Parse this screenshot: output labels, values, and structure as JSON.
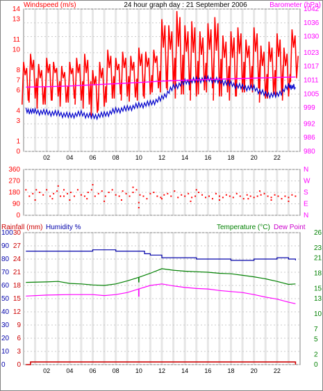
{
  "header": {
    "left_label": "Windspeed (m/s)",
    "title": "24 hour graph day : 21 September 2006",
    "right_label": "Barometer (hPa)"
  },
  "colors": {
    "frame": "#808080",
    "grid": "#c8c8c8",
    "hour_band": "#e6e6e6",
    "red": "#ff0000",
    "blue": "#0000cc",
    "magenta": "#ff00ff",
    "green": "#008000",
    "rainfall": "#cc0000",
    "humidity": "#0000aa",
    "dew_label": "#cc00cc",
    "axis_text": "#000000"
  },
  "x_ticks": [
    "02",
    "04",
    "06",
    "08",
    "10",
    "12",
    "14",
    "16",
    "18",
    "20",
    "22"
  ],
  "chart_data": [
    {
      "type": "line",
      "title": "24 hour graph day : 21 September 2006",
      "ylabel": "Windspeed (m/s)",
      "y2label": "Barometer (hPa)",
      "xlim": [
        0,
        24
      ],
      "ylim": [
        0,
        14
      ],
      "y_ticks": [
        0,
        1,
        3,
        4,
        6,
        7,
        8,
        10,
        11,
        13,
        14
      ],
      "y2lim": [
        980,
        1042
      ],
      "y2_ticks": [
        980,
        986,
        992,
        999,
        1005,
        1011,
        1017,
        1023,
        1030,
        1036,
        1042
      ],
      "grid": true,
      "series": [
        {
          "name": "Windspeed (m/s)",
          "axis": "left",
          "color": "#ff0000",
          "x": [
            0.2,
            0.8,
            1.5,
            2.2,
            2.8,
            3.5,
            4.2,
            4.8,
            5.5,
            6.2,
            6.8,
            7.5,
            8.2,
            8.8,
            9.5,
            10.2,
            10.8,
            11.5,
            12.2,
            12.8,
            13.5,
            14.2,
            14.8,
            15.5,
            16.2,
            16.8,
            17.5,
            18.2,
            18.8,
            19.5,
            20.2,
            20.8,
            21.5,
            22.2,
            22.8,
            23.5
          ],
          "low": [
            4.6,
            4.8,
            4.2,
            4.6,
            5.0,
            4.4,
            4.8,
            4.6,
            4.2,
            3.4,
            4.0,
            4.8,
            5.2,
            5.0,
            4.9,
            5.0,
            5.2,
            5.8,
            5.8,
            6.0,
            5.2,
            5.6,
            5.0,
            5.6,
            5.8,
            5.0,
            5.4,
            5.0,
            5.4,
            5.8,
            5.8,
            4.8,
            5.2,
            5.4,
            5.0,
            6.8
          ],
          "high": [
            8.8,
            9.6,
            8.6,
            9.2,
            8.8,
            8.4,
            8.8,
            9.2,
            9.6,
            8.0,
            8.8,
            10.0,
            9.2,
            9.8,
            9.4,
            10.2,
            9.8,
            10.0,
            13.0,
            12.4,
            13.8,
            12.4,
            12.8,
            11.8,
            12.6,
            13.2,
            11.4,
            11.8,
            12.2,
            11.0,
            12.2,
            10.4,
            10.8,
            11.6,
            10.2,
            12.0
          ]
        },
        {
          "name": "Windspeed average",
          "axis": "left",
          "color": "#0000cc",
          "x": [
            0.2,
            1,
            2,
            3,
            4,
            5,
            6,
            7,
            8,
            9,
            10,
            11,
            12,
            13,
            14,
            15,
            16,
            17,
            18,
            19,
            20,
            21,
            22,
            23,
            23.6
          ],
          "y": [
            4.0,
            3.9,
            3.8,
            3.7,
            3.5,
            3.7,
            3.4,
            3.6,
            4.0,
            4.2,
            4.5,
            4.7,
            5.2,
            6.3,
            6.8,
            7.0,
            7.1,
            6.9,
            6.6,
            6.3,
            6.2,
            5.6,
            5.5,
            6.4,
            6.3
          ]
        },
        {
          "name": "Barometer (hPa)",
          "axis": "right",
          "color": "#ff00ff",
          "x": [
            0.2,
            2,
            4,
            6,
            8,
            10,
            12,
            14,
            16,
            18,
            20,
            22,
            23.6
          ],
          "y": [
            1008.0,
            1008.2,
            1008.5,
            1009.0,
            1009.5,
            1010.0,
            1010.6,
            1011.0,
            1011.3,
            1011.6,
            1011.9,
            1012.2,
            1012.4
          ]
        }
      ]
    },
    {
      "type": "scatter",
      "ylabel": "Wind direction",
      "xlim": [
        0,
        24
      ],
      "ylim": [
        0,
        360
      ],
      "y_ticks": [
        0,
        90,
        180,
        270,
        360
      ],
      "y_tick_labels": [
        "0",
        "90",
        "180",
        "270",
        "360"
      ],
      "compass_labels": [
        "N",
        "W",
        "S",
        "E",
        "N"
      ],
      "grid": true,
      "series": [
        {
          "name": "Wind direction",
          "color": "#ff0000",
          "x": [
            0.2,
            0.5,
            0.8,
            1.1,
            1.4,
            1.7,
            2.0,
            2.3,
            2.6,
            2.9,
            3.2,
            3.5,
            3.8,
            4.1,
            4.4,
            4.7,
            5.0,
            5.3,
            5.6,
            5.9,
            6.2,
            6.5,
            6.8,
            7.1,
            7.4,
            7.7,
            8.0,
            8.3,
            8.6,
            8.9,
            9.2,
            9.5,
            9.8,
            10.1,
            10.4,
            10.7,
            11.0,
            11.3,
            11.6,
            11.9,
            12.2,
            12.5,
            12.8,
            13.1,
            13.4,
            13.7,
            14.0,
            14.3,
            14.6,
            14.9,
            15.2,
            15.5,
            15.8,
            16.1,
            16.4,
            16.7,
            17.0,
            17.3,
            17.6,
            17.9,
            18.2,
            18.5,
            18.8,
            19.1,
            19.4,
            19.7,
            20.0,
            20.3,
            20.6,
            20.9,
            21.2,
            21.5,
            21.8,
            22.1,
            22.4,
            22.7,
            23.0,
            23.3,
            23.6,
            1.0,
            2.5,
            4.0,
            5.5,
            7.0,
            8.5,
            10.0,
            12.0,
            14.5,
            17.0,
            19.5,
            21.5,
            23.0,
            3.0,
            9.5,
            15.0,
            20.5,
            10.0,
            3.5,
            6.0
          ],
          "y": [
            200,
            150,
            170,
            200,
            180,
            160,
            200,
            150,
            170,
            190,
            150,
            200,
            170,
            180,
            150,
            200,
            160,
            150,
            180,
            200,
            150,
            170,
            190,
            150,
            180,
            200,
            160,
            150,
            190,
            170,
            150,
            180,
            200,
            160,
            150,
            130,
            170,
            180,
            150,
            140,
            160,
            170,
            150,
            190,
            140,
            160,
            150,
            170,
            140,
            150,
            180,
            160,
            140,
            150,
            130,
            170,
            150,
            140,
            160,
            150,
            140,
            170,
            150,
            130,
            160,
            150,
            140,
            150,
            160,
            170,
            150,
            140,
            160,
            150,
            130,
            150,
            140,
            160,
            150,
            120,
            130,
            120,
            130,
            110,
            120,
            60,
            130,
            110,
            120,
            130,
            120,
            110,
            230,
            220,
            200,
            190,
            100,
            150,
            240
          ]
        }
      ]
    },
    {
      "type": "line",
      "ylabel": "Rainfall (mm)",
      "y2label": "Humidity %",
      "y3label": "Temperature (°C)",
      "y4label": "Dew Point",
      "xlim": [
        0,
        24
      ],
      "rain_ylim": [
        0,
        30
      ],
      "rain_ticks": [
        0,
        3,
        6,
        9,
        12,
        15,
        18,
        21,
        24,
        27,
        30
      ],
      "humidity_ylim": [
        0,
        100
      ],
      "humidity_ticks": [
        0,
        10,
        20,
        30,
        40,
        50,
        60,
        70,
        80,
        90,
        100
      ],
      "temp_ylim": [
        0,
        26
      ],
      "temp_ticks": [
        0,
        2,
        5,
        7,
        10,
        13,
        15,
        18,
        21,
        23,
        26
      ],
      "grid": true,
      "series": [
        {
          "name": "Rainfall (mm)",
          "axis": "rain",
          "color": "#cc0000",
          "x": [
            0.2,
            0.6,
            0.6,
            23.6,
            23.6
          ],
          "y": [
            0,
            0,
            0.6,
            0.6,
            0
          ]
        },
        {
          "name": "Humidity %",
          "axis": "humidity",
          "color": "#0000aa",
          "x": [
            0.2,
            2,
            4,
            5,
            6,
            7,
            8,
            9,
            10,
            10.5,
            11,
            12,
            13,
            14,
            15,
            16,
            17,
            18,
            19,
            20,
            21,
            22,
            23,
            23.6
          ],
          "y": [
            86,
            86,
            86,
            86,
            87,
            87,
            86,
            86,
            86,
            84,
            83,
            81,
            81,
            81,
            80,
            80,
            80,
            79,
            79,
            80,
            80,
            81,
            80,
            79
          ]
        },
        {
          "name": "Temperature (°C)",
          "axis": "temp",
          "color": "#008000",
          "x": [
            0.2,
            2,
            3,
            4,
            5,
            6,
            7,
            8,
            9,
            10,
            11,
            12,
            13,
            14,
            15,
            16,
            17,
            18,
            19,
            20,
            21,
            22,
            23,
            23.6
          ],
          "y": [
            16.2,
            16.3,
            16.4,
            16.0,
            15.9,
            15.7,
            15.6,
            15.9,
            16.5,
            17.2,
            18.0,
            18.9,
            18.6,
            18.4,
            18.3,
            18.2,
            18.0,
            17.9,
            17.6,
            17.3,
            16.9,
            16.4,
            15.8,
            15.9
          ]
        },
        {
          "name": "Dew Point",
          "axis": "temp",
          "color": "#ff00ff",
          "x": [
            0.2,
            2,
            4,
            6,
            7,
            8,
            9,
            10,
            11,
            12,
            13,
            14,
            15,
            16,
            17,
            18,
            19,
            20,
            21,
            22,
            23,
            23.6
          ],
          "y": [
            13.5,
            13.7,
            13.8,
            13.8,
            13.6,
            13.8,
            14.2,
            14.9,
            15.6,
            15.9,
            15.5,
            15.2,
            15.0,
            14.9,
            14.6,
            14.4,
            14.2,
            13.8,
            13.3,
            12.9,
            12.3,
            12.0
          ]
        }
      ]
    }
  ],
  "panel3_labels": {
    "rainfall": "Rainfall (mm)",
    "humidity": "Humidity %",
    "temperature": "Temperature (°C)",
    "dewpoint": "Dew Point"
  }
}
